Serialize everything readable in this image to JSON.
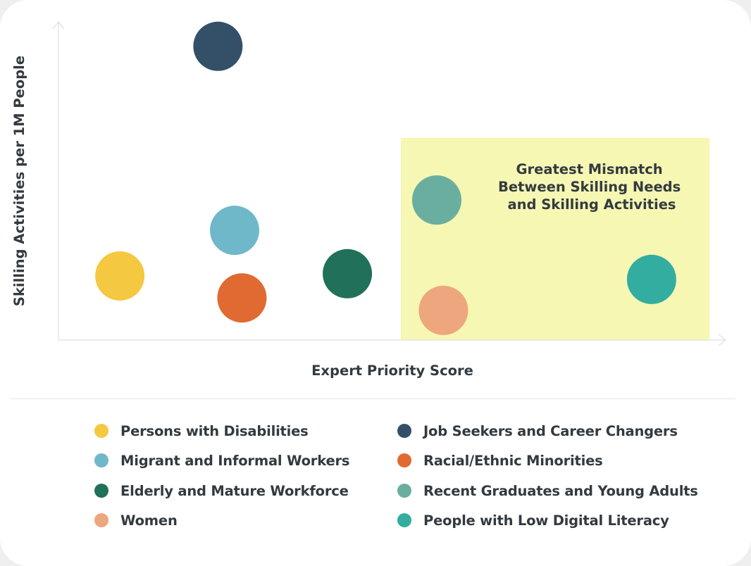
{
  "chart_data": {
    "type": "scatter",
    "xlabel": "Expert Priority Score",
    "ylabel": "Skilling Activities per 1M People",
    "xlim": [
      0,
      100
    ],
    "ylim": [
      0,
      100
    ],
    "grid": false,
    "legend_position": "bottom",
    "annotation": {
      "text_lines": [
        "Greatest Mismatch",
        "Between Skilling Needs",
        "and Skilling Activities"
      ],
      "region": {
        "x": [
          51.3,
          97.6
        ],
        "y": [
          0,
          63.4
        ]
      },
      "color": "#f5f7b3"
    },
    "series": [
      {
        "name": "Persons with Disabilities",
        "color": "#f5c842",
        "x": 9.2,
        "y": 20.1
      },
      {
        "name": "Job Seekers and Career Changers",
        "color": "#345069",
        "x": 23.9,
        "y": 92.1
      },
      {
        "name": "Migrant and Informal Workers",
        "color": "#6fb8c9",
        "x": 26.4,
        "y": 34.4
      },
      {
        "name": "Racial/Ethnic Minorities",
        "color": "#e06a31",
        "x": 27.5,
        "y": 13.2
      },
      {
        "name": "Elderly and Mature Workforce",
        "color": "#21705a",
        "x": 43.3,
        "y": 20.8
      },
      {
        "name": "Recent Graduates and Young Adults",
        "color": "#6aaea0",
        "x": 56.7,
        "y": 43.9
      },
      {
        "name": "Women",
        "color": "#eda67e",
        "x": 57.7,
        "y": 9.3
      },
      {
        "name": "People with Low Digital Literacy",
        "color": "#32ada0",
        "x": 88.9,
        "y": 19.0
      }
    ],
    "legend_order": [
      0,
      1,
      2,
      3,
      4,
      5,
      6,
      7
    ]
  }
}
